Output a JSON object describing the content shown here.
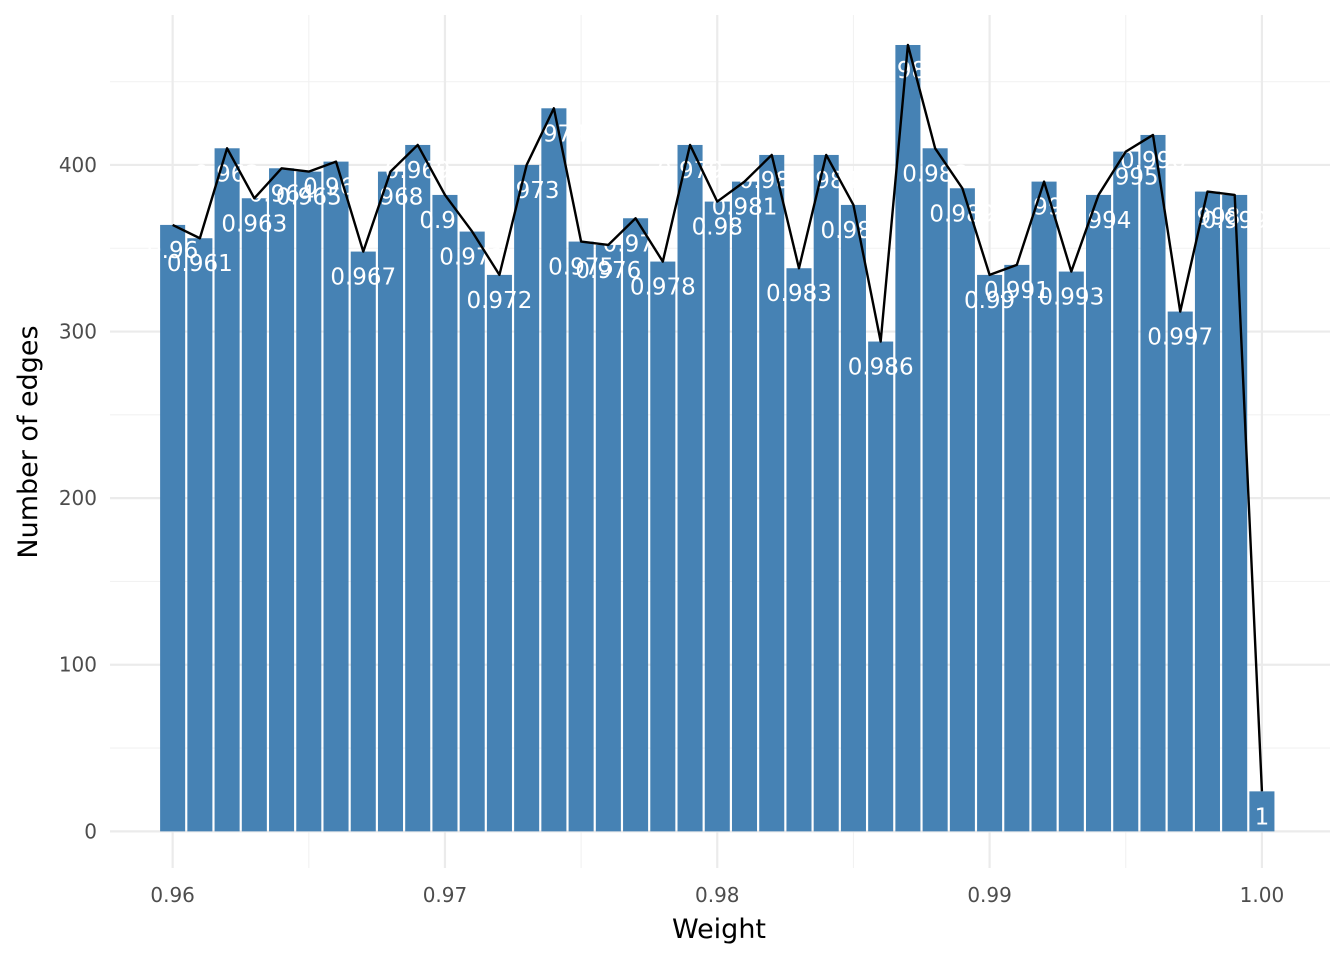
{
  "colors": {
    "bar": "#4682b4",
    "line": "#000000",
    "label": "#ffffff"
  },
  "chart_data": {
    "type": "bar",
    "title": "",
    "xlabel": "Weight",
    "ylabel": "Number of edges",
    "xlim": [
      0.9577,
      1.0025
    ],
    "ylim": [
      -22,
      490
    ],
    "x_ticks": [
      {
        "value": 0.96,
        "label": "0.96"
      },
      {
        "value": 0.97,
        "label": "0.97"
      },
      {
        "value": 0.98,
        "label": "0.98"
      },
      {
        "value": 0.99,
        "label": "0.99"
      },
      {
        "value": 1.0,
        "label": "1.00"
      }
    ],
    "y_ticks": [
      {
        "value": 0,
        "label": "0"
      },
      {
        "value": 100,
        "label": "100"
      },
      {
        "value": 200,
        "label": "200"
      },
      {
        "value": 300,
        "label": "300"
      },
      {
        "value": 400,
        "label": "400"
      }
    ],
    "grid": true,
    "line_overlay": true,
    "bar_width": 0.00092,
    "x": [
      0.96,
      0.961,
      0.962,
      0.963,
      0.964,
      0.965,
      0.966,
      0.967,
      0.968,
      0.969,
      0.97,
      0.971,
      0.972,
      0.973,
      0.974,
      0.975,
      0.976,
      0.977,
      0.978,
      0.979,
      0.98,
      0.981,
      0.982,
      0.983,
      0.984,
      0.985,
      0.986,
      0.987,
      0.988,
      0.989,
      0.99,
      0.991,
      0.992,
      0.993,
      0.994,
      0.995,
      0.996,
      0.997,
      0.998,
      0.999,
      1.0
    ],
    "values": [
      364,
      356,
      410,
      380,
      398,
      396,
      402,
      348,
      396,
      412,
      382,
      360,
      334,
      400,
      434,
      354,
      352,
      368,
      342,
      412,
      378,
      390,
      406,
      338,
      406,
      376,
      294,
      472,
      410,
      386,
      334,
      340,
      390,
      336,
      382,
      408,
      418,
      312,
      384,
      382,
      24
    ],
    "labels": [
      "0.96",
      "0.961",
      "0.962",
      "0.963",
      "0.964",
      "0.965",
      "0.966",
      "0.967",
      "0.968",
      "0.969",
      "0.97",
      "0.971",
      "0.972",
      "0.973",
      "0.974",
      "0.975",
      "0.976",
      "0.977",
      "0.978",
      "0.979",
      "0.98",
      "0.981",
      "0.982",
      "0.983",
      "0.984",
      "0.985",
      "0.986",
      "0.987",
      "0.988",
      "0.989",
      "0.99",
      "0.991",
      "0.992",
      "0.993",
      "0.994",
      "0.995",
      "0.996",
      "0.997",
      "0.998",
      "0.999",
      "1"
    ]
  }
}
